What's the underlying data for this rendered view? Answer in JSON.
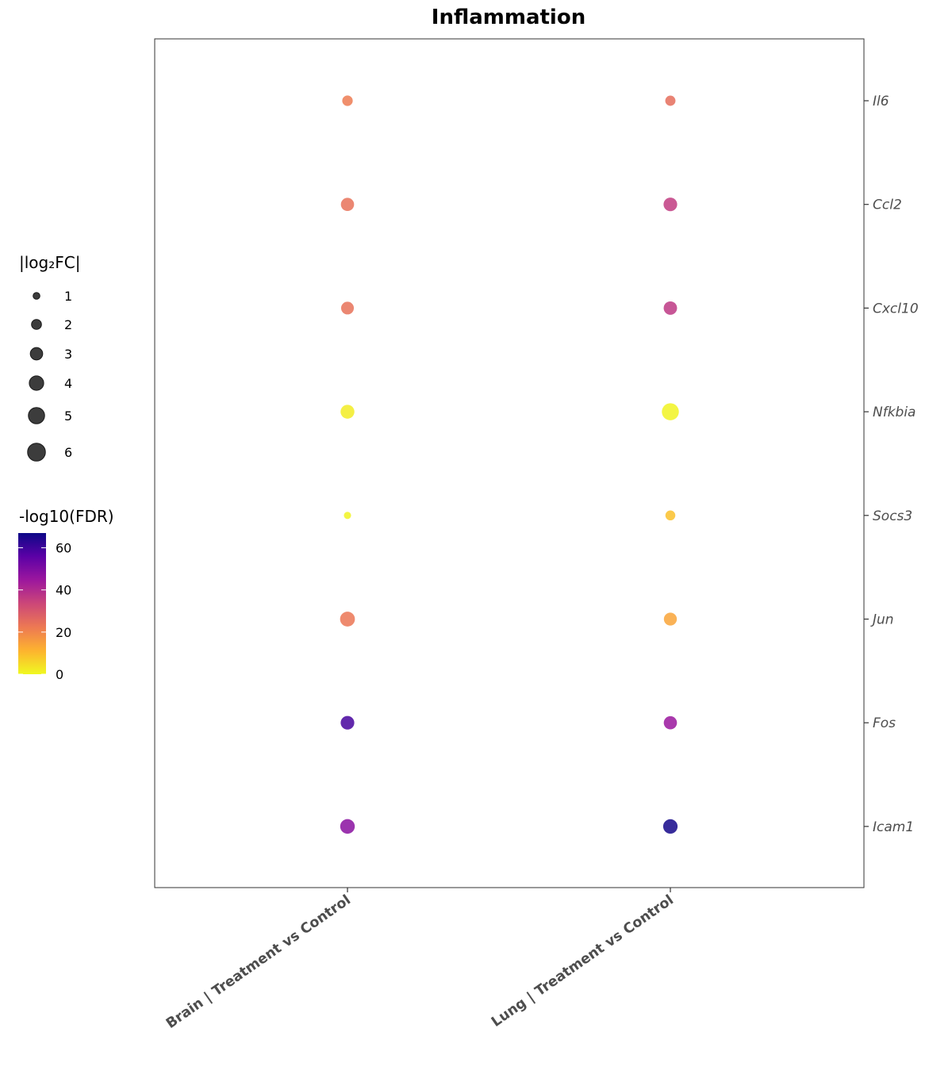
{
  "chart_data": {
    "type": "scatter",
    "title": "Inflammation",
    "categories": [
      "Brain | Treatment vs Control",
      "Lung | Treatment vs Control"
    ],
    "genes": [
      "Il6",
      "Ccl2",
      "Cxcl10",
      "Nfkbia",
      "Socs3",
      "Jun",
      "Fos",
      "Icam1"
    ],
    "points": [
      {
        "gene": "Il6",
        "comparison": "Brain | Treatment vs Control",
        "abs_log2fc": 1.9,
        "neg_log10_fdr": 22
      },
      {
        "gene": "Il6",
        "comparison": "Lung | Treatment vs Control",
        "abs_log2fc": 1.8,
        "neg_log10_fdr": 25
      },
      {
        "gene": "Ccl2",
        "comparison": "Brain | Treatment vs Control",
        "abs_log2fc": 3.0,
        "neg_log10_fdr": 24
      },
      {
        "gene": "Ccl2",
        "comparison": "Lung | Treatment vs Control",
        "abs_log2fc": 3.2,
        "neg_log10_fdr": 36
      },
      {
        "gene": "Cxcl10",
        "comparison": "Brain | Treatment vs Control",
        "abs_log2fc": 2.8,
        "neg_log10_fdr": 24
      },
      {
        "gene": "Cxcl10",
        "comparison": "Lung | Treatment vs Control",
        "abs_log2fc": 3.1,
        "neg_log10_fdr": 37
      },
      {
        "gene": "Nfkbia",
        "comparison": "Brain | Treatment vs Control",
        "abs_log2fc": 3.3,
        "neg_log10_fdr": 2
      },
      {
        "gene": "Nfkbia",
        "comparison": "Lung | Treatment vs Control",
        "abs_log2fc": 5.0,
        "neg_log10_fdr": 1
      },
      {
        "gene": "Socs3",
        "comparison": "Brain | Treatment vs Control",
        "abs_log2fc": 0.9,
        "neg_log10_fdr": 1
      },
      {
        "gene": "Socs3",
        "comparison": "Lung | Treatment vs Control",
        "abs_log2fc": 1.7,
        "neg_log10_fdr": 9
      },
      {
        "gene": "Jun",
        "comparison": "Brain | Treatment vs Control",
        "abs_log2fc": 3.8,
        "neg_log10_fdr": 23
      },
      {
        "gene": "Jun",
        "comparison": "Lung | Treatment vs Control",
        "abs_log2fc": 2.9,
        "neg_log10_fdr": 14
      },
      {
        "gene": "Fos",
        "comparison": "Brain | Treatment vs Control",
        "abs_log2fc": 3.2,
        "neg_log10_fdr": 59
      },
      {
        "gene": "Fos",
        "comparison": "Lung | Treatment vs Control",
        "abs_log2fc": 3.0,
        "neg_log10_fdr": 45
      },
      {
        "gene": "Icam1",
        "comparison": "Brain | Treatment vs Control",
        "abs_log2fc": 3.7,
        "neg_log10_fdr": 48
      },
      {
        "gene": "Icam1",
        "comparison": "Lung | Treatment vs Control",
        "abs_log2fc": 3.6,
        "neg_log10_fdr": 66
      }
    ],
    "size_legend": {
      "title": "|log₂FC|",
      "breaks": [
        1,
        2,
        3,
        4,
        5,
        6
      ]
    },
    "color_legend": {
      "title": "-log10(FDR)",
      "ticks": [
        0,
        20,
        40,
        60
      ],
      "range": [
        0,
        67
      ],
      "palette": [
        "#F0F921",
        "#FDB32F",
        "#ED7953",
        "#CC4778",
        "#9C179E",
        "#5C01A6",
        "#0D0887"
      ]
    },
    "grid": false,
    "point_alpha": 0.85
  }
}
